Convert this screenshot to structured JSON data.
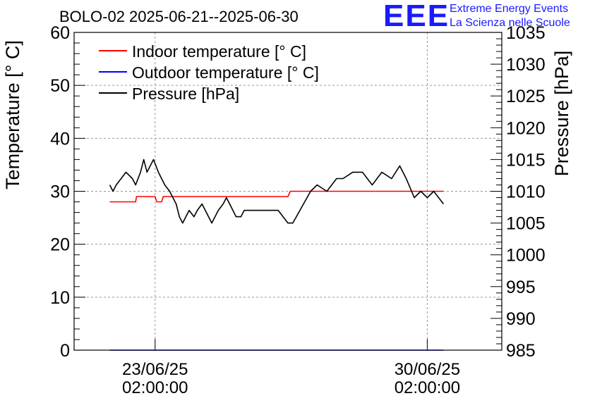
{
  "logo": {
    "mark": "EEE",
    "line1": "Extreme Energy Events",
    "line2": "La Scienza nelle Scuole"
  },
  "chart_data": {
    "type": "line",
    "title": "BOLO-02 2025-06-21--2025-06-30",
    "ylabel": "Temperature [° C]",
    "y2label": "Pressure [hPa]",
    "ylim": [
      0,
      60
    ],
    "y2lim": [
      985,
      1035
    ],
    "yticks": [
      "0",
      "10",
      "20",
      "30",
      "40",
      "50",
      "60"
    ],
    "y2ticks": [
      "985",
      "990",
      "995",
      "1000",
      "1005",
      "1010",
      "1015",
      "1020",
      "1025",
      "1030",
      "1035"
    ],
    "xlim": [
      "2025-06-21 00:00",
      "2025-07-02 00:00"
    ],
    "xticks": [
      {
        "x": "2025-06-23 02:00",
        "line1": "23/06/25",
        "line2": "02:00:00"
      },
      {
        "x": "2025-06-30 02:00",
        "line1": "30/06/25",
        "line2": "02:00:00"
      }
    ],
    "grid": true,
    "legend_position": "top-left",
    "colors": {
      "indoor": "#ff0000",
      "outdoor": "#0000ff",
      "pressure": "#000000"
    },
    "series": [
      {
        "name": "Indoor temperature [° C]",
        "axis": "left",
        "color": "#ff0000",
        "points": [
          [
            "2025-06-21 22:00",
            28.0
          ],
          [
            "2025-06-22 14:00",
            28.0
          ],
          [
            "2025-06-22 14:30",
            29.0
          ],
          [
            "2025-06-23 02:00",
            29.0
          ],
          [
            "2025-06-23 03:00",
            28.0
          ],
          [
            "2025-06-23 06:00",
            28.0
          ],
          [
            "2025-06-23 07:00",
            29.0
          ],
          [
            "2025-06-26 12:00",
            29.0
          ],
          [
            "2025-06-26 13:30",
            30.0
          ],
          [
            "2025-06-30 12:00",
            30.0
          ]
        ]
      },
      {
        "name": "Outdoor temperature [° C]",
        "axis": "left",
        "color": "#0000ff",
        "points": [
          [
            "2025-06-21 22:00",
            0.0
          ],
          [
            "2025-06-30 12:00",
            0.0
          ]
        ]
      },
      {
        "name": "Pressure [hPa]",
        "axis": "right",
        "color": "#000000",
        "points": [
          [
            "2025-06-21 22:00",
            1011.0
          ],
          [
            "2025-06-22 00:00",
            1010.0
          ],
          [
            "2025-06-22 02:00",
            1011.0
          ],
          [
            "2025-06-22 05:00",
            1012.0
          ],
          [
            "2025-06-22 08:00",
            1013.0
          ],
          [
            "2025-06-22 12:00",
            1012.0
          ],
          [
            "2025-06-22 14:00",
            1011.0
          ],
          [
            "2025-06-22 17:00",
            1013.0
          ],
          [
            "2025-06-22 19:00",
            1015.0
          ],
          [
            "2025-06-22 21:00",
            1013.0
          ],
          [
            "2025-06-22 23:00",
            1014.0
          ],
          [
            "2025-06-23 01:00",
            1015.0
          ],
          [
            "2025-06-23 04:00",
            1013.0
          ],
          [
            "2025-06-23 06:00",
            1012.0
          ],
          [
            "2025-06-23 08:00",
            1011.0
          ],
          [
            "2025-06-23 11:00",
            1010.0
          ],
          [
            "2025-06-23 13:00",
            1009.0
          ],
          [
            "2025-06-23 15:00",
            1008.0
          ],
          [
            "2025-06-23 17:00",
            1006.0
          ],
          [
            "2025-06-23 19:00",
            1005.0
          ],
          [
            "2025-06-23 21:00",
            1006.0
          ],
          [
            "2025-06-23 23:00",
            1007.0
          ],
          [
            "2025-06-24 02:00",
            1006.0
          ],
          [
            "2025-06-24 04:00",
            1007.0
          ],
          [
            "2025-06-24 07:00",
            1008.0
          ],
          [
            "2025-06-24 09:00",
            1007.0
          ],
          [
            "2025-06-24 11:00",
            1006.0
          ],
          [
            "2025-06-24 13:00",
            1005.0
          ],
          [
            "2025-06-24 15:00",
            1006.0
          ],
          [
            "2025-06-24 17:00",
            1007.0
          ],
          [
            "2025-06-24 20:00",
            1008.0
          ],
          [
            "2025-06-24 22:00",
            1009.0
          ],
          [
            "2025-06-25 00:00",
            1008.0
          ],
          [
            "2025-06-25 02:00",
            1007.0
          ],
          [
            "2025-06-25 04:00",
            1006.0
          ],
          [
            "2025-06-25 07:00",
            1006.0
          ],
          [
            "2025-06-25 09:00",
            1007.0
          ],
          [
            "2025-06-26 06:00",
            1007.0
          ],
          [
            "2025-06-26 09:00",
            1006.0
          ],
          [
            "2025-06-26 12:00",
            1005.0
          ],
          [
            "2025-06-26 15:00",
            1005.0
          ],
          [
            "2025-06-27 02:00",
            1010.0
          ],
          [
            "2025-06-27 06:00",
            1011.0
          ],
          [
            "2025-06-27 12:00",
            1010.0
          ],
          [
            "2025-06-27 18:00",
            1012.0
          ],
          [
            "2025-06-27 22:00",
            1012.0
          ],
          [
            "2025-06-28 04:00",
            1013.0
          ],
          [
            "2025-06-28 10:00",
            1013.0
          ],
          [
            "2025-06-28 16:00",
            1011.0
          ],
          [
            "2025-06-28 22:00",
            1013.0
          ],
          [
            "2025-06-29 04:00",
            1012.0
          ],
          [
            "2025-06-29 09:00",
            1014.0
          ],
          [
            "2025-06-29 13:00",
            1012.0
          ],
          [
            "2025-06-29 18:00",
            1009.0
          ],
          [
            "2025-06-29 22:00",
            1010.0
          ],
          [
            "2025-06-30 02:00",
            1009.0
          ],
          [
            "2025-06-30 06:00",
            1010.0
          ],
          [
            "2025-06-30 09:00",
            1009.0
          ],
          [
            "2025-06-30 12:00",
            1008.0
          ]
        ]
      }
    ]
  }
}
